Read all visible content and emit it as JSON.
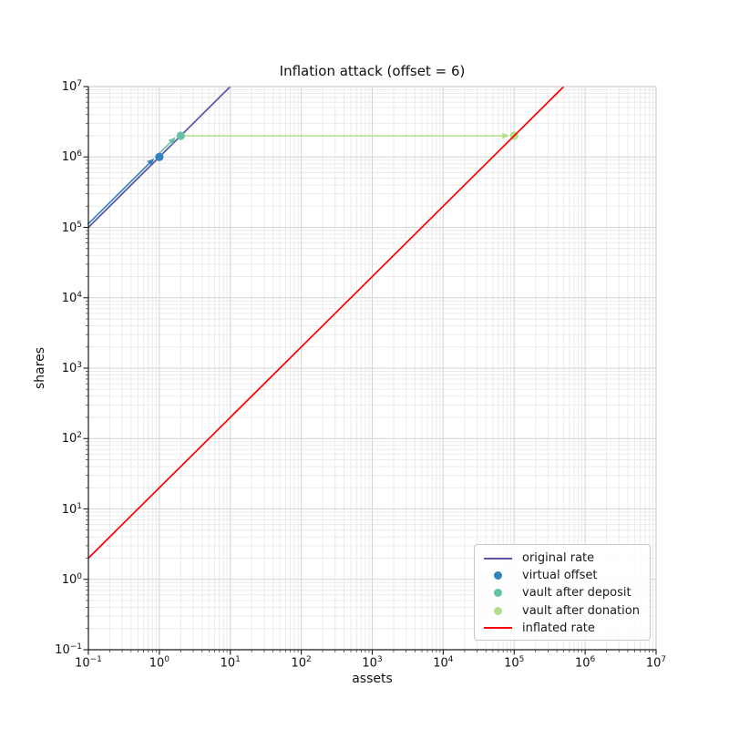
{
  "chart_data": {
    "type": "line",
    "title": "Inflation attack (offset = 6)",
    "xlabel": "assets",
    "ylabel": "shares",
    "xscale": "log",
    "yscale": "log",
    "xlim": [
      0.1,
      10000000
    ],
    "ylim": [
      0.1,
      10000000
    ],
    "x_tick_exponents": [
      -1,
      0,
      1,
      2,
      3,
      4,
      5,
      6,
      7
    ],
    "y_tick_exponents": [
      -1,
      0,
      1,
      2,
      3,
      4,
      5,
      6,
      7
    ],
    "grid": {
      "major": true,
      "minor": true
    },
    "colors": {
      "original_rate": "#5a55a5",
      "virtual_offset": "#3182bd",
      "vault_after_deposit": "#66c2a5",
      "vault_after_donation": "#b2df8a",
      "inflated_rate": "#ff0000",
      "major_grid": "#d4d4d4",
      "minor_grid": "#ebebeb"
    },
    "series": [
      {
        "name": "original rate",
        "kind": "line",
        "z": 1,
        "color": "#5a55a5",
        "points": [
          [
            0.1,
            100000
          ],
          [
            10,
            10000000
          ]
        ]
      },
      {
        "name": "virtual offset",
        "kind": "scatter",
        "z": 3,
        "color": "#3182bd",
        "points": [
          [
            1,
            1000000
          ]
        ]
      },
      {
        "name": "vault after deposit",
        "kind": "scatter",
        "z": 3,
        "color": "#66c2a5",
        "points": [
          [
            2,
            2000000
          ]
        ]
      },
      {
        "name": "vault after donation",
        "kind": "scatter",
        "z": 3,
        "color": "#b2df8a",
        "points": [
          [
            100000,
            2000000
          ]
        ]
      },
      {
        "name": "inflated rate",
        "kind": "line",
        "z": 4,
        "color": "#ff0000",
        "points": [
          [
            0.1,
            2
          ],
          [
            500000,
            10000000
          ]
        ]
      }
    ],
    "annotations": [
      {
        "type": "arrow",
        "color": "#3182bd",
        "from": [
          0.1,
          100000
        ],
        "to": [
          1,
          1000000
        ]
      },
      {
        "type": "arrow",
        "color": "#66c2a5",
        "from": [
          1,
          1000000
        ],
        "to": [
          2,
          2000000
        ]
      },
      {
        "type": "arrow",
        "color": "#b2df8a",
        "from": [
          2,
          2000000
        ],
        "to": [
          100000,
          2000000
        ]
      }
    ],
    "legend": {
      "position": "lower right",
      "entries": [
        {
          "label": "original rate",
          "marker": "line",
          "color": "#5a55a5"
        },
        {
          "label": "virtual offset",
          "marker": "dot",
          "color": "#3182bd"
        },
        {
          "label": "vault after deposit",
          "marker": "dot",
          "color": "#66c2a5"
        },
        {
          "label": "vault after donation",
          "marker": "dot",
          "color": "#b2df8a"
        },
        {
          "label": "inflated rate",
          "marker": "line",
          "color": "#ff0000"
        }
      ]
    }
  }
}
